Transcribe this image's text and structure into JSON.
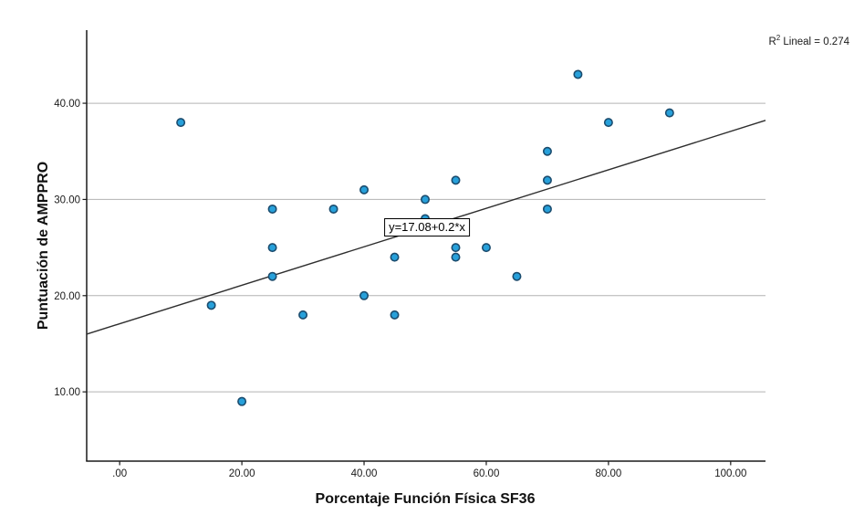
{
  "annotations": {
    "r_squared": {
      "prefix": "R",
      "sup": "2",
      "suffix": " Lineal = 0.274"
    }
  },
  "chart_data": {
    "type": "scatter",
    "title": "",
    "xlabel": "Porcentaje Función Física SF36",
    "ylabel": "Puntuación de AMPPRO",
    "x_ticks": [
      0,
      20,
      40,
      60,
      80,
      100
    ],
    "x_tick_labels": [
      ".00",
      "20.00",
      "40.00",
      "60.00",
      "80.00",
      "100.00"
    ],
    "y_ticks": [
      10,
      20,
      30,
      40
    ],
    "y_tick_labels": [
      "10.00",
      "20.00",
      "30.00",
      "40.00"
    ],
    "xlim": [
      -5.4,
      105.7
    ],
    "ylim": [
      2.8,
      47.6
    ],
    "grid": true,
    "legend": "none",
    "points": [
      [
        10,
        38
      ],
      [
        15,
        19
      ],
      [
        20,
        9
      ],
      [
        25,
        29
      ],
      [
        25,
        25
      ],
      [
        25,
        22
      ],
      [
        30,
        18
      ],
      [
        35,
        29
      ],
      [
        40,
        31
      ],
      [
        40,
        20
      ],
      [
        45,
        24
      ],
      [
        45,
        18
      ],
      [
        50,
        30
      ],
      [
        50,
        28
      ],
      [
        55,
        32
      ],
      [
        55,
        25
      ],
      [
        55,
        24
      ],
      [
        60,
        25
      ],
      [
        65,
        22
      ],
      [
        70,
        35
      ],
      [
        70,
        32
      ],
      [
        70,
        29
      ],
      [
        75,
        43
      ],
      [
        80,
        38
      ],
      [
        90,
        39
      ]
    ],
    "fit_line": {
      "slope": 0.2,
      "intercept": 17.08,
      "label": "y=17.08+0.2*x",
      "r_squared": 0.274
    },
    "colors": {
      "point_fill": "#27a0da",
      "point_stroke": "#1b4c6e",
      "fit_line": "#2e2e2e",
      "grid": "#b3b3b3",
      "axis": "#1a1a1a",
      "tick_text": "#1a1a1a"
    }
  }
}
